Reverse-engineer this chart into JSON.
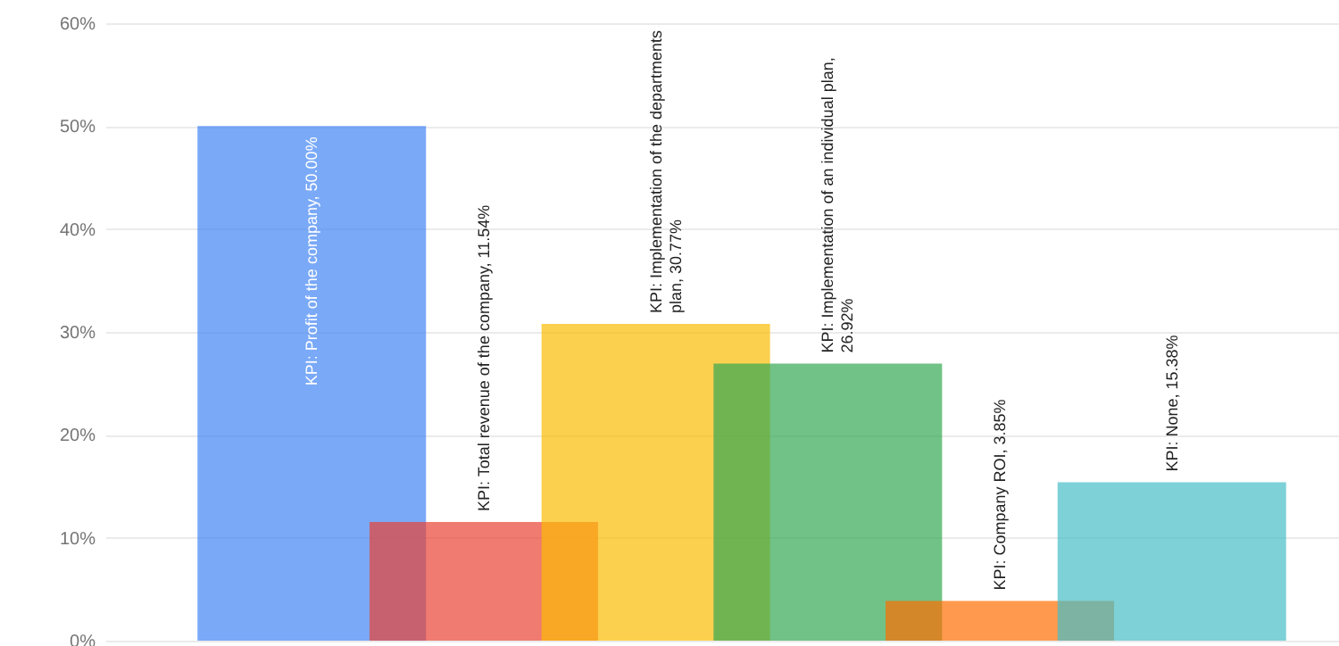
{
  "chart_data": {
    "type": "bar",
    "categories": [
      null,
      null,
      null,
      null,
      null,
      null
    ],
    "values": [
      50.0,
      11.54,
      30.77,
      26.92,
      3.85,
      15.38
    ],
    "colors": [
      "#4285f4",
      "#ea4335",
      "#fbbc04",
      "#34a853",
      "#ff6d01",
      "#46bdc6"
    ],
    "value_labels": [
      "KPI: Profit of the company, 50.00%",
      "KPI: Total revenue of the company, 11.54%",
      "KPI: Implementation of the departments\nplan, 30.77%",
      "KPI: Implementation of an individual plan,\n26.92%",
      "KPI: Company ROI, 3.85%",
      "KPI: None, 15.38%"
    ],
    "ylim": [
      0,
      60
    ],
    "yticks": [
      {
        "value": 0,
        "label": "0%"
      },
      {
        "value": 10,
        "label": "10%"
      },
      {
        "value": 20,
        "label": "20%"
      },
      {
        "value": 30,
        "label": "30%"
      },
      {
        "value": 40,
        "label": "40%"
      },
      {
        "value": 50,
        "label": "50%"
      },
      {
        "value": 60,
        "label": "60%"
      }
    ],
    "grid": "y",
    "tick_labels": "y"
  }
}
